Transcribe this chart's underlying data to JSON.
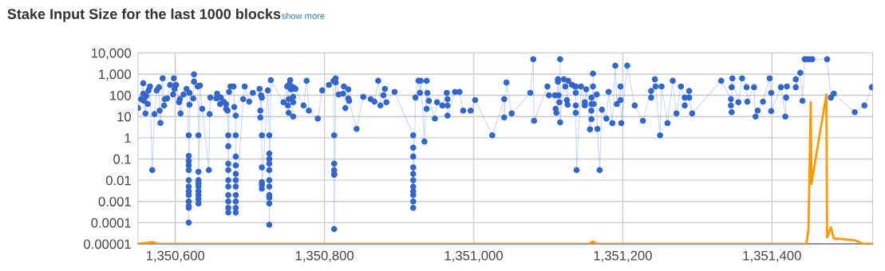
{
  "chart_data": {
    "type": "line",
    "title": "Stake Input Size for the last 1000 blocks",
    "annotations": [
      "show more"
    ],
    "log": "y",
    "grid": true,
    "xlim": [
      1350550,
      1351535
    ],
    "xticks": [
      {
        "value": 1350600,
        "label": "1,350,600"
      },
      {
        "value": 1350800,
        "label": "1,350,800"
      },
      {
        "value": 1351000,
        "label": "1,351,000"
      },
      {
        "value": 1351200,
        "label": "1,351,200"
      },
      {
        "value": 1351400,
        "label": "1,351,400"
      }
    ],
    "ylim": [
      1e-05,
      10000
    ],
    "yticks": [
      {
        "value": 1e-05,
        "label": "0.00001"
      },
      {
        "value": 0.0001,
        "label": "0.0001"
      },
      {
        "value": 0.001,
        "label": "0.001"
      },
      {
        "value": 0.01,
        "label": "0.01"
      },
      {
        "value": 0.1,
        "label": "0.1"
      },
      {
        "value": 1,
        "label": "1"
      },
      {
        "value": 10,
        "label": "10"
      },
      {
        "value": 100,
        "label": "100"
      },
      {
        "value": 1000,
        "label": "1,000"
      },
      {
        "value": 10000,
        "label": "10,000"
      }
    ],
    "series": [
      {
        "color": "#3366cc",
        "marker": "circle",
        "x": [
          1350550,
          1350554,
          1350557,
          1350557,
          1350558,
          1350560,
          1350561,
          1350563,
          1350564,
          1350566,
          1350569,
          1350572,
          1350575,
          1350578,
          1350579,
          1350580,
          1350583,
          1350585,
          1350586,
          1350589,
          1350593,
          1350597,
          1350598,
          1350599,
          1350601,
          1350605,
          1350606,
          1350607,
          1350611,
          1350615,
          1350618,
          1350618,
          1350618,
          1350618,
          1350618,
          1350618,
          1350618,
          1350618,
          1350618,
          1350618,
          1350618,
          1350618,
          1350618,
          1350619,
          1350619,
          1350624,
          1350625,
          1350625,
          1350630,
          1350631,
          1350631,
          1350631,
          1350631,
          1350631,
          1350631,
          1350631,
          1350631,
          1350631,
          1350633,
          1350636,
          1350645,
          1350646,
          1350647,
          1350655,
          1350656,
          1350660,
          1350661,
          1350665,
          1350668,
          1350668,
          1350670,
          1350671,
          1350671,
          1350671,
          1350671,
          1350671,
          1350671,
          1350671,
          1350671,
          1350671,
          1350671,
          1350672,
          1350674,
          1350678,
          1350679,
          1350681,
          1350681,
          1350681,
          1350681,
          1350681,
          1350681,
          1350681,
          1350681,
          1350681,
          1350681,
          1350681,
          1350691,
          1350693,
          1350699,
          1350704,
          1350713,
          1350714,
          1350714,
          1350715,
          1350716,
          1350716,
          1350716,
          1350716,
          1350716,
          1350716,
          1350724,
          1350726,
          1350726,
          1350726,
          1350726,
          1350726,
          1350726,
          1350726,
          1350726,
          1350726,
          1350726,
          1350726,
          1350728,
          1350745,
          1350750,
          1350751,
          1350752,
          1350752,
          1350753,
          1350754,
          1350755,
          1350758,
          1350758,
          1350758,
          1350758,
          1350761,
          1350772,
          1350776,
          1350779,
          1350791,
          1350797,
          1350806,
          1350812,
          1350813,
          1350813,
          1350813,
          1350813,
          1350813,
          1350813,
          1350815,
          1350815,
          1350819,
          1350825,
          1350826,
          1350828,
          1350832,
          1350832,
          1350833,
          1350843,
          1350852,
          1350862,
          1350867,
          1350872,
          1350875,
          1350879,
          1350881,
          1350883,
          1350894,
          1350919,
          1350919,
          1350919,
          1350919,
          1350919,
          1350919,
          1350919,
          1350919,
          1350919,
          1350919,
          1350919,
          1350922,
          1350926,
          1350928,
          1350929,
          1350934,
          1350937,
          1350937,
          1350938,
          1350940,
          1350948,
          1350951,
          1350958,
          1350964,
          1350965,
          1350965,
          1350965,
          1350975,
          1350981,
          1350986,
          1350996,
          1351002,
          1351025,
          1351041,
          1351041,
          1351044,
          1351051,
          1351076,
          1351080,
          1351081,
          1351099,
          1351101,
          1351109,
          1351110,
          1351111,
          1351113,
          1351113,
          1351114,
          1351115,
          1351116,
          1351116,
          1351121,
          1351123,
          1351125,
          1351126,
          1351127,
          1351132,
          1351136,
          1351137,
          1351137,
          1351137,
          1351137,
          1351138,
          1351144,
          1351149,
          1351149,
          1351151,
          1351156,
          1351158,
          1351158,
          1351158,
          1351158,
          1351160,
          1351160,
          1351161,
          1351165,
          1351166,
          1351169,
          1351172,
          1351178,
          1351181,
          1351186,
          1351190,
          1351192,
          1351197,
          1351197,
          1351198,
          1351206,
          1351216,
          1351227,
          1351238,
          1351238,
          1351243,
          1351244,
          1351250,
          1351252,
          1351260,
          1351267,
          1351272,
          1351278,
          1351283,
          1351283,
          1351289,
          1351289,
          1351293,
          1351332,
          1351345,
          1351345,
          1351346,
          1351346,
          1351347,
          1351355,
          1351360,
          1351366,
          1351367,
          1351376,
          1351378,
          1351381,
          1351388,
          1351397,
          1351399,
          1351399,
          1351412,
          1351418,
          1351419,
          1351420,
          1351432,
          1351432,
          1351438,
          1351441,
          1351444,
          1351447,
          1351450,
          1351454,
          1351474,
          1351479,
          1351483,
          1351511,
          1351524,
          1351534
        ],
        "values": [
          25,
          66,
          370,
          120,
          55,
          14,
          93,
          39,
          170,
          260,
          0.03,
          13,
          170,
          240,
          19,
          5,
          630,
          33,
          66,
          71,
          310,
          110,
          630,
          200,
          310,
          47,
          66,
          14,
          110,
          200,
          1.3,
          0.14,
          0.08,
          0.05,
          0.03,
          0.01,
          0.005,
          0.003,
          0.002,
          0.001,
          0.0006,
          0.0005,
          0.0001,
          36,
          130,
          71,
          440,
          960,
          260,
          1.3,
          0.025,
          0.01,
          0.007,
          0.005,
          0.003,
          0.002,
          0.0013,
          0.0008,
          290,
          23,
          0.03,
          13,
          78,
          71,
          120,
          39,
          78,
          50,
          39,
          23,
          19,
          1.3,
          0.4,
          0.06,
          0.03,
          0.01,
          0.005,
          0.002,
          0.001,
          0.0005,
          0.0003,
          145,
          260,
          260,
          28,
          11,
          1.3,
          0.13,
          0.05,
          0.02,
          0.01,
          0.005,
          0.002,
          0.001,
          0.0005,
          0.0003,
          66,
          260,
          50,
          130,
          200,
          19,
          9,
          100,
          78,
          1.3,
          0.04,
          0.008,
          0.006,
          0.004,
          170,
          1.3,
          0.18,
          0.1,
          0.06,
          0.03,
          0.01,
          0.005,
          0.002,
          0.0015,
          0.0008,
          8e-05,
          520,
          47,
          260,
          33,
          15,
          66,
          340,
          520,
          190,
          85,
          47,
          10,
          240,
          200,
          33,
          480,
          19,
          8,
          170,
          310,
          480,
          1.3,
          0.06,
          0.03,
          0.02,
          0.018,
          5e-05,
          630,
          400,
          110,
          120,
          260,
          25,
          71,
          190,
          55,
          2.6,
          85,
          66,
          50,
          480,
          33,
          100,
          200,
          47,
          145,
          1.3,
          0.34,
          0.13,
          0.04,
          0.02,
          0.01,
          0.005,
          0.003,
          0.002,
          0.001,
          0.0005,
          78,
          480,
          130,
          480,
          0.66,
          480,
          23,
          130,
          55,
          8,
          47,
          33,
          130,
          66,
          33,
          11,
          145,
          145,
          19,
          19,
          60,
          1.3,
          66,
          9,
          400,
          14,
          130,
          5000,
          6.3,
          260,
          100,
          100,
          23,
          15,
          570,
          440,
          100,
          47,
          5000,
          5.3,
          570,
          260,
          60,
          36,
          480,
          310,
          260,
          130,
          260,
          33,
          15,
          0.03,
          260,
          33,
          47,
          190,
          2.5,
          19,
          78,
          39,
          7.5,
          260,
          1050,
          39,
          110,
          2.6,
          0.03,
          21,
          8,
          145,
          4.9,
          2500,
          39,
          260,
          60,
          4.9,
          2500,
          33,
          6.3,
          160,
          78,
          570,
          260,
          1.3,
          260,
          4.9,
          480,
          14,
          260,
          78,
          33,
          160,
          78,
          14,
          480,
          66,
          33,
          16,
          240,
          630,
          47,
          630,
          240,
          50,
          240,
          10,
          19,
          50,
          630,
          130,
          18,
          240,
          10,
          78,
          260,
          570,
          240,
          1150,
          55,
          5000,
          5000,
          5000,
          5000,
          5000,
          78,
          120,
          16,
          33,
          240
        ]
      },
      {
        "color": "#ff9900",
        "marker": "none",
        "x": [
          1350550,
          1350569,
          1350580,
          1351155,
          1351160,
          1351165,
          1351446,
          1351449,
          1351452,
          1351453,
          1351473,
          1351474,
          1351479,
          1351483,
          1351511,
          1351523,
          1351534
        ],
        "values": [
          1e-05,
          1.2e-05,
          1e-05,
          1e-05,
          1.3e-05,
          1e-05,
          1e-05,
          4.5e-05,
          47,
          0.0068,
          110,
          2e-05,
          6e-05,
          1.8e-05,
          1.5e-05,
          1e-05,
          1e-05
        ]
      }
    ]
  }
}
